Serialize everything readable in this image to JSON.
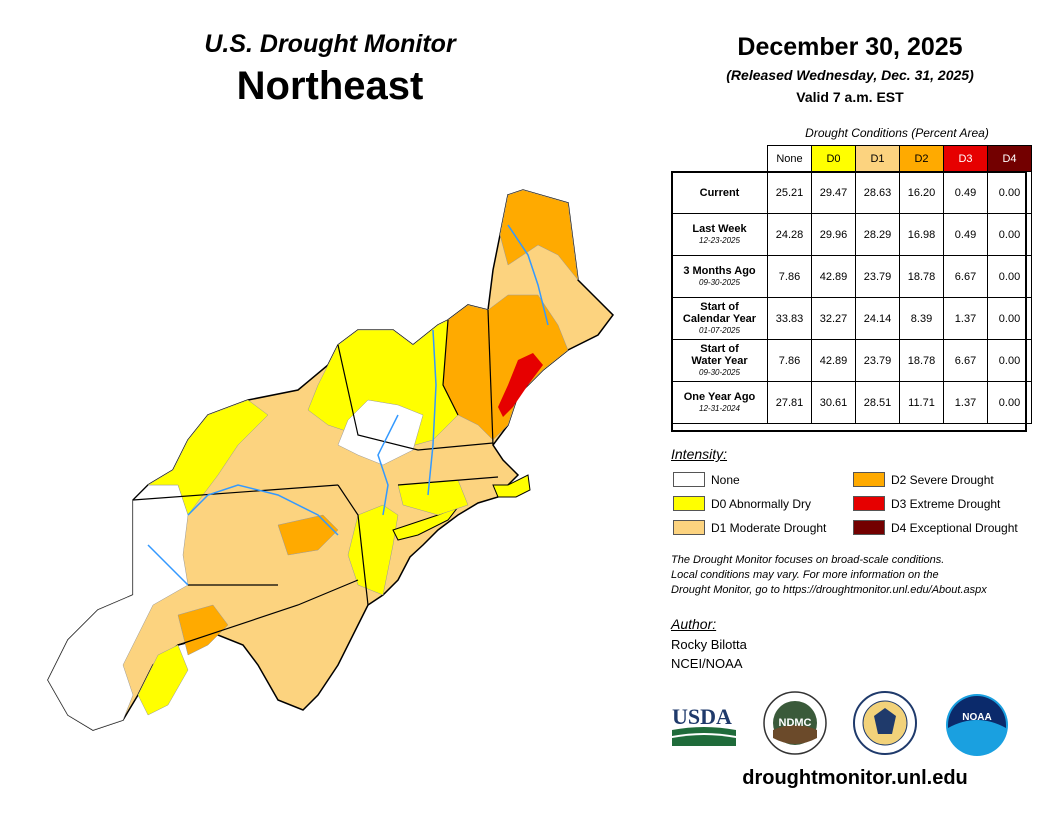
{
  "header": {
    "title": "U.S. Drought Monitor",
    "region": "Northeast",
    "date": "December 30, 2025",
    "released": "(Released Wednesday, Dec. 31, 2025)",
    "valid": "Valid 7 a.m. EST"
  },
  "table": {
    "caption": "Drought Conditions (Percent Area)",
    "columns": [
      {
        "label": "None",
        "color": "#ffffff"
      },
      {
        "label": "D0",
        "color": "#ffff00"
      },
      {
        "label": "D1",
        "color": "#fcd37f"
      },
      {
        "label": "D2",
        "color": "#ffaa00"
      },
      {
        "label": "D3",
        "color": "#e60000"
      },
      {
        "label": "D4",
        "color": "#730000"
      }
    ],
    "rows": [
      {
        "label": "Current",
        "label2": "",
        "date": "",
        "values": [
          "25.21",
          "29.47",
          "28.63",
          "16.20",
          "0.49",
          "0.00"
        ]
      },
      {
        "label": "Last Week",
        "label2": "",
        "date": "12-23-2025",
        "values": [
          "24.28",
          "29.96",
          "28.29",
          "16.98",
          "0.49",
          "0.00"
        ]
      },
      {
        "label": "3 Months Ago",
        "label2": "",
        "date": "09-30-2025",
        "values": [
          "7.86",
          "42.89",
          "23.79",
          "18.78",
          "6.67",
          "0.00"
        ]
      },
      {
        "label": "Start of",
        "label2": "Calendar Year",
        "date": "01-07-2025",
        "values": [
          "33.83",
          "32.27",
          "24.14",
          "8.39",
          "1.37",
          "0.00"
        ]
      },
      {
        "label": "Start of",
        "label2": "Water Year",
        "date": "09-30-2025",
        "values": [
          "7.86",
          "42.89",
          "23.79",
          "18.78",
          "6.67",
          "0.00"
        ]
      },
      {
        "label": "One Year Ago",
        "label2": "",
        "date": "12-31-2024",
        "values": [
          "27.81",
          "30.61",
          "28.51",
          "11.71",
          "1.37",
          "0.00"
        ]
      }
    ]
  },
  "legend": {
    "heading": "Intensity:",
    "items": [
      {
        "label": "None",
        "color": "#ffffff"
      },
      {
        "label": "D0 Abnormally Dry",
        "color": "#ffff00"
      },
      {
        "label": "D1 Moderate Drought",
        "color": "#fcd37f"
      },
      {
        "label": "D2 Severe Drought",
        "color": "#ffaa00"
      },
      {
        "label": "D3 Extreme Drought",
        "color": "#e60000"
      },
      {
        "label": "D4 Exceptional Drought",
        "color": "#730000"
      }
    ]
  },
  "note": {
    "line1": "The Drought Monitor focuses on broad-scale conditions.",
    "line2": "Local conditions may vary. For more information on the",
    "line3": "Drought Monitor, go to https://droughtmonitor.unl.edu/About.aspx"
  },
  "author": {
    "heading": "Author:",
    "name": "Rocky Bilotta",
    "org": "NCEI/NOAA"
  },
  "logos": {
    "usda": "USDA",
    "ndmc": "NDMC",
    "noaa": "NOAA"
  },
  "website": "droughtmonitor.unl.edu"
}
